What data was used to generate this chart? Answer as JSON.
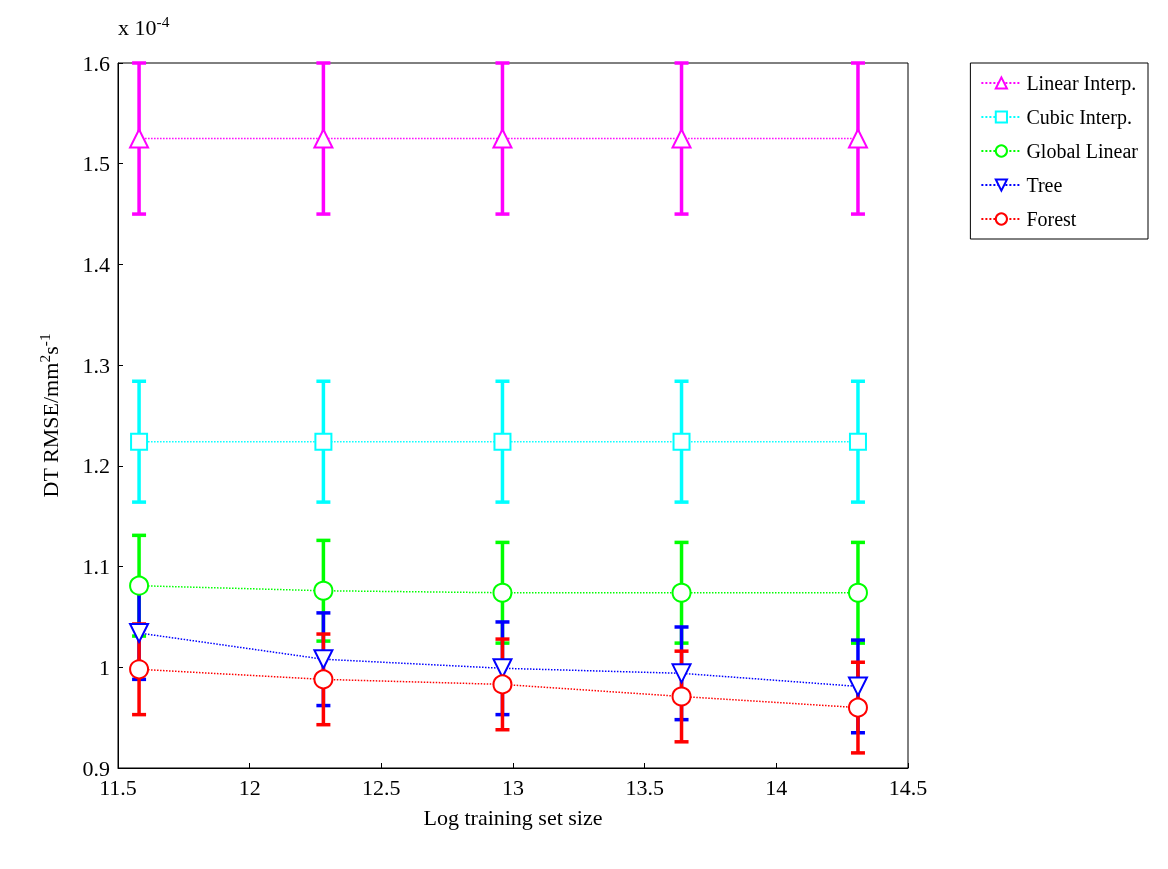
{
  "chart_data": {
    "type": "line",
    "xlabel": "Log training set size",
    "ylabel": "DT RMSE/mm$^{2}$s$^{-1}$",
    "annotations": [
      "x 10$^{-4}$"
    ],
    "x": [
      11.58,
      12.28,
      12.96,
      13.64,
      14.31
    ],
    "series": [
      {
        "name": "Linear Interp.",
        "color": "#ff00ff",
        "marker": "triangle",
        "values": [
          1.525,
          1.525,
          1.525,
          1.525,
          1.525
        ],
        "errors": [
          0.075,
          0.075,
          0.075,
          0.075,
          0.075
        ]
      },
      {
        "name": "Cubic Interp.",
        "color": "#00ffff",
        "marker": "square",
        "values": [
          1.224,
          1.224,
          1.224,
          1.224,
          1.224
        ],
        "errors": [
          0.06,
          0.06,
          0.06,
          0.06,
          0.06
        ]
      },
      {
        "name": "Global Linear",
        "color": "#00ff00",
        "marker": "circle",
        "values": [
          1.081,
          1.076,
          1.074,
          1.074,
          1.074
        ],
        "errors": [
          0.05,
          0.05,
          0.05,
          0.05,
          0.05
        ]
      },
      {
        "name": "Tree",
        "color": "#0000ff",
        "marker": "triangle-down",
        "values": [
          1.034,
          1.008,
          0.999,
          0.994,
          0.981
        ],
        "errors": [
          0.046,
          0.046,
          0.046,
          0.046,
          0.046
        ]
      },
      {
        "name": "Forest",
        "color": "#ff0000",
        "marker": "circle",
        "values": [
          0.998,
          0.988,
          0.983,
          0.971,
          0.96
        ],
        "errors": [
          0.045,
          0.045,
          0.045,
          0.045,
          0.045
        ]
      }
    ],
    "xlim": [
      11.5,
      14.5
    ],
    "xticks": [
      11.5,
      12,
      12.5,
      13,
      13.5,
      14,
      14.5
    ],
    "ylim": [
      0.9,
      1.6
    ],
    "yticks": [
      0.9,
      1,
      1.1,
      1.2,
      1.3,
      1.4,
      1.5,
      1.6
    ],
    "grid": false,
    "legend": "top right",
    "line_style": "dotted"
  }
}
